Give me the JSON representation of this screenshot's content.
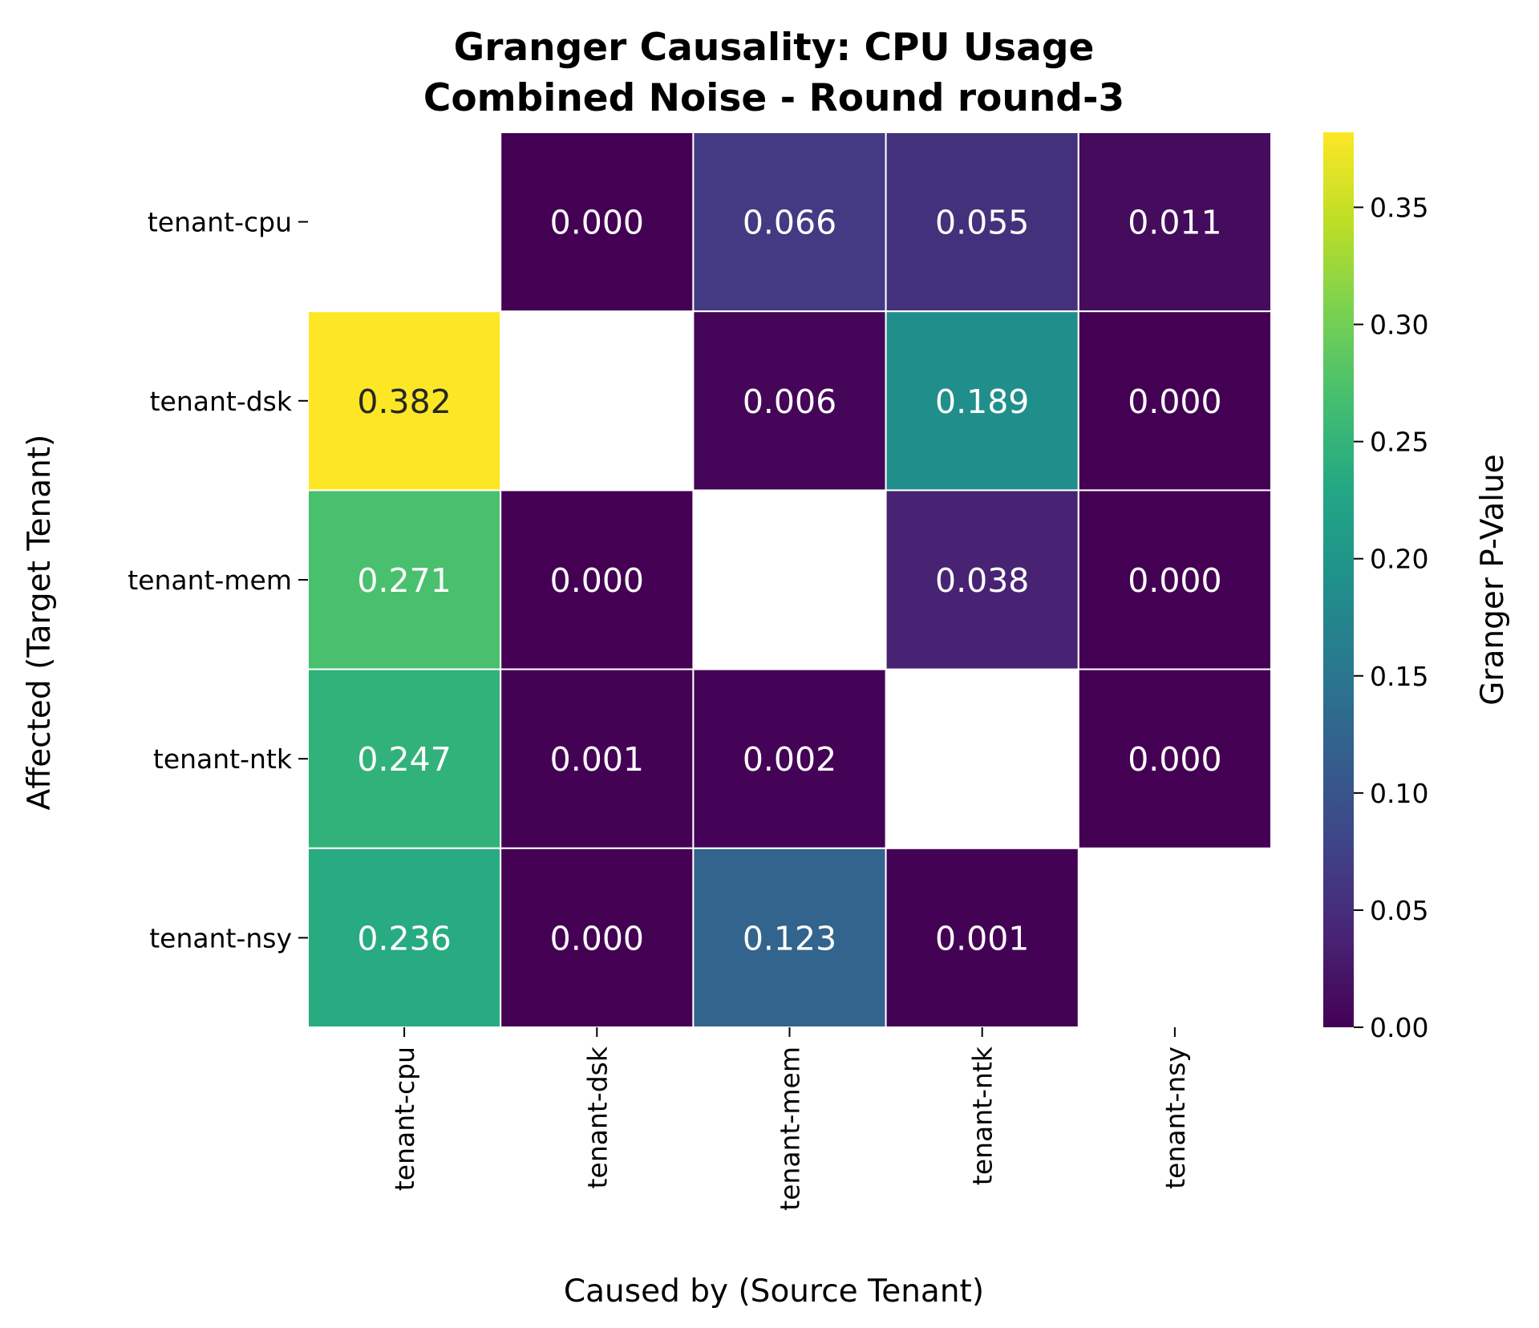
{
  "chart_data": {
    "type": "heatmap",
    "title_lines": [
      "Granger Causality: CPU Usage",
      "Combined Noise - Round round-3"
    ],
    "xlabel": "Caused by (Source Tenant)",
    "ylabel": "Affected (Target Tenant)",
    "x_categories": [
      "tenant-cpu",
      "tenant-dsk",
      "tenant-mem",
      "tenant-ntk",
      "tenant-nsy"
    ],
    "y_categories": [
      "tenant-cpu",
      "tenant-dsk",
      "tenant-mem",
      "tenant-ntk",
      "tenant-nsy"
    ],
    "values": [
      [
        null,
        0.0,
        0.066,
        0.055,
        0.011
      ],
      [
        0.382,
        null,
        0.006,
        0.189,
        0.0
      ],
      [
        0.271,
        0.0,
        null,
        0.038,
        0.0
      ],
      [
        0.247,
        0.001,
        0.002,
        null,
        0.0
      ],
      [
        0.236,
        0.0,
        0.123,
        0.001,
        null
      ]
    ],
    "value_format_decimals": 3,
    "colormap": "viridis",
    "colorbar": {
      "label": "Granger P-Value",
      "range": [
        0,
        0.382
      ],
      "ticks": [
        "0.00",
        "0.05",
        "0.10",
        "0.15",
        "0.20",
        "0.25",
        "0.30",
        "0.35"
      ],
      "tick_values": [
        0.0,
        0.05,
        0.1,
        0.15,
        0.2,
        0.25,
        0.3,
        0.35
      ]
    },
    "grid_line_color": "#ffffff",
    "dark_text_color": "#262626",
    "light_text_color": "#ffffff"
  }
}
